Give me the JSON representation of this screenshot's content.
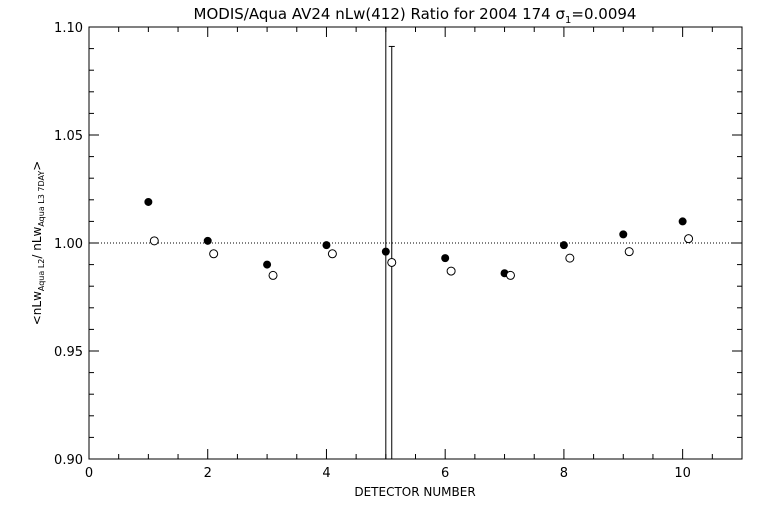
{
  "chart_data": {
    "type": "scatter",
    "title": {
      "prefix": "MODIS/Aqua AV24 nLw(412) Ratio for 2004 174 ",
      "sigma_symbol": "σ",
      "sigma_subscript": "1",
      "sigma_value": "=0.0094"
    },
    "xlabel": "DETECTOR NUMBER",
    "ylabel": {
      "open": "<nLw",
      "sub1": "Aqua L2",
      "mid": "/ nLw",
      "sub2": "Aqua L3 7DAY",
      "close": ">"
    },
    "xlim": [
      0,
      11
    ],
    "ylim": [
      0.9,
      1.1
    ],
    "x_ticks": [
      0,
      2,
      4,
      6,
      8,
      10
    ],
    "x_tick_labels": [
      "0",
      "2",
      "4",
      "6",
      "8",
      "10"
    ],
    "y_ticks": [
      0.9,
      0.95,
      1.0,
      1.05,
      1.1
    ],
    "y_tick_labels": [
      "0.90",
      "0.95",
      "1.00",
      "1.05",
      "1.10"
    ],
    "reference_line_y": 1.0,
    "series": [
      {
        "marker": "filled-circle",
        "x": [
          1,
          2,
          3,
          4,
          5,
          6,
          7,
          8,
          9,
          10
        ],
        "y": [
          1.019,
          1.001,
          0.99,
          0.999,
          0.996,
          0.993,
          0.986,
          0.999,
          1.004,
          1.01
        ],
        "error_bars": [
          {
            "x": 5,
            "low": 0.9,
            "high": 1.1
          }
        ]
      },
      {
        "marker": "open-circle",
        "x": [
          1.1,
          2.1,
          3.1,
          4.1,
          5.1,
          6.1,
          7.1,
          8.1,
          9.1,
          10.1
        ],
        "y": [
          1.001,
          0.995,
          0.985,
          0.995,
          0.991,
          0.987,
          0.985,
          0.993,
          0.996,
          1.002
        ],
        "error_bars": [
          {
            "x": 5.1,
            "low": 0.9,
            "high": 1.091
          }
        ]
      }
    ],
    "grid": false
  }
}
